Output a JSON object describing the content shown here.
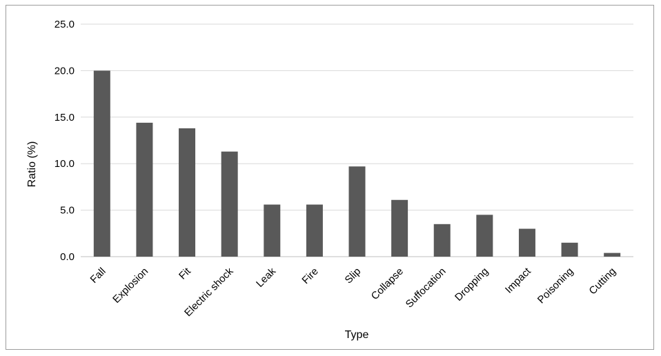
{
  "chart_data": {
    "type": "bar",
    "categories": [
      "Fall",
      "Explosion",
      "Fit",
      "Electric shock",
      "Leak",
      "Fire",
      "Slip",
      "Collapse",
      "Suffocation",
      "Dropping",
      "Impact",
      "Poisoning",
      "Cutting"
    ],
    "values": [
      20.0,
      14.4,
      13.8,
      11.3,
      5.6,
      5.6,
      9.7,
      6.1,
      3.5,
      4.5,
      3.0,
      1.5,
      0.4
    ],
    "title": "",
    "xlabel": "Type",
    "ylabel": "Ratio (%)",
    "ylim": [
      0,
      25
    ],
    "yticks": [
      "0.0",
      "5.0",
      "10.0",
      "15.0",
      "20.0",
      "25.0"
    ],
    "grid": "horizontal",
    "legend": "none",
    "bar_color": "#595959",
    "grid_color": "#d9d9d9"
  }
}
